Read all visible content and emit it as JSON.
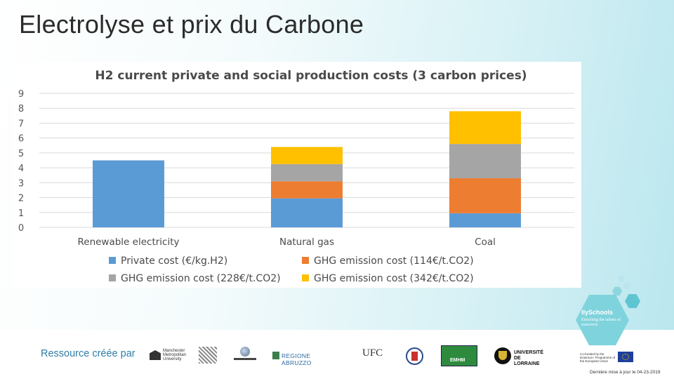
{
  "slide": {
    "title": "Electrolyse et prix du Carbone",
    "footer_label": "Ressource créée par",
    "updated": "Dernière mise à jour le 04-23-2019"
  },
  "badge": {
    "title": "IlySchools",
    "subtitle": "Enriching the talents of tomorrow"
  },
  "logos": {
    "manchester": "Manchester Metropolitan University",
    "regione": "REGIONE ABRUZZO",
    "ufc": "UFC",
    "lorraine": "UNIVERSITÉ DE LORRAINE",
    "emhm": "EMHM",
    "eu_text": "Co-funded by the Erasmus+ Programme of the European Union"
  },
  "colors": {
    "private": "#5b9bd5",
    "ghg114": "#ed7d31",
    "ghg228": "#a5a5a5",
    "ghg342": "#ffc000"
  },
  "chart_data": {
    "type": "bar",
    "stacked": true,
    "title": "H2 current private and social production costs (3 carbon prices)",
    "categories": [
      "Renewable electricity",
      "Natural gas",
      "Coal"
    ],
    "ylim": [
      0,
      9
    ],
    "yticks": [
      0,
      1,
      2,
      3,
      4,
      5,
      6,
      7,
      8,
      9
    ],
    "grid": true,
    "legend_position": "bottom",
    "series": [
      {
        "name": "Private cost (€/kg.H2)",
        "color": "#5b9bd5",
        "values": [
          4.5,
          1.95,
          0.95
        ]
      },
      {
        "name": "GHG emission cost (114€/t.CO2)",
        "color": "#ed7d31",
        "values": [
          0,
          1.15,
          2.35
        ]
      },
      {
        "name": "GHG emission cost (228€/t.CO2)",
        "color": "#a5a5a5",
        "values": [
          0,
          1.15,
          2.3
        ]
      },
      {
        "name": "GHG emission cost (342€/t.CO2)",
        "color": "#ffc000",
        "values": [
          0,
          1.15,
          2.2
        ]
      }
    ]
  }
}
